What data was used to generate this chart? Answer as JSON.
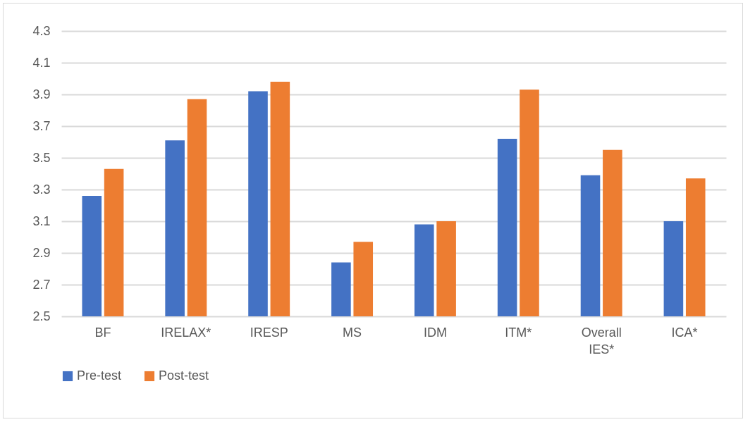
{
  "chart_data": {
    "type": "bar",
    "categories": [
      "BF",
      "IRELAX*",
      "IRESP",
      "MS",
      "IDM",
      "ITM*",
      "Overall IES*",
      "ICA*"
    ],
    "series": [
      {
        "name": "Pre-test",
        "color": "#4472c4",
        "values": [
          3.26,
          3.61,
          3.92,
          2.84,
          3.08,
          3.62,
          3.39,
          3.1
        ]
      },
      {
        "name": "Post-test",
        "color": "#ed7d31",
        "values": [
          3.43,
          3.87,
          3.98,
          2.97,
          3.1,
          3.93,
          3.55,
          3.37
        ]
      }
    ],
    "ylim": [
      2.5,
      4.3
    ],
    "yticks": [
      2.5,
      2.7,
      2.9,
      3.1,
      3.3,
      3.5,
      3.7,
      3.9,
      4.1,
      4.3
    ],
    "grid": "y",
    "legend": "bottom"
  }
}
